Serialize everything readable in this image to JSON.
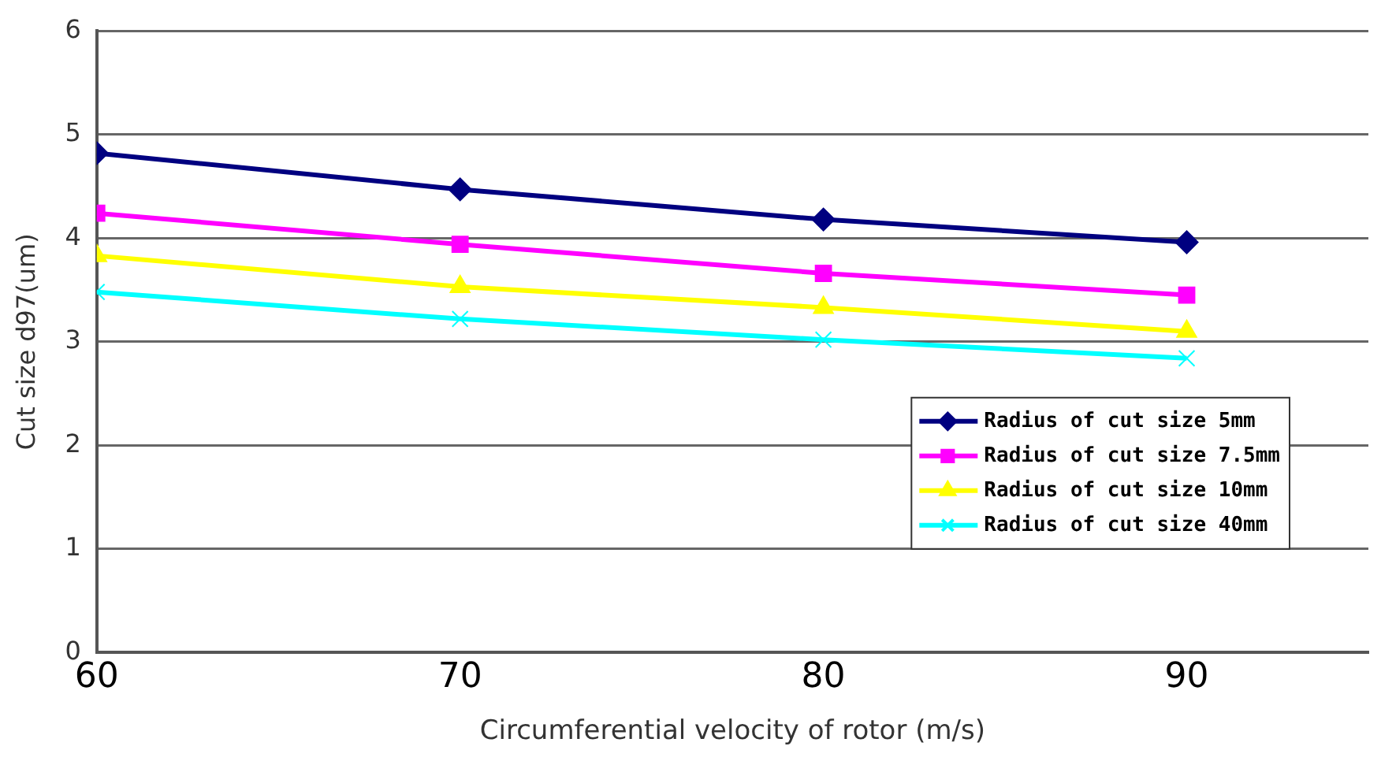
{
  "chart_data": {
    "type": "line",
    "xlabel": "Circumferential velocity of rotor (m/s)",
    "ylabel": "Cut size d97(um)",
    "x": [
      60,
      70,
      80,
      90
    ],
    "xlim": [
      60,
      95
    ],
    "xticks": [
      60,
      70,
      80,
      90
    ],
    "ylim": [
      0,
      6
    ],
    "yticks": [
      0,
      1,
      2,
      3,
      4,
      5,
      6
    ],
    "grid": "y",
    "legend": "right",
    "line_style": "solid",
    "series": [
      {
        "name": "Radius of cut size 5mm",
        "color": "#000080",
        "marker": "diamond",
        "values": [
          4.82,
          4.47,
          4.18,
          3.96
        ]
      },
      {
        "name": "Radius of cut size 7.5mm",
        "color": "#ff00ff",
        "marker": "square",
        "values": [
          4.24,
          3.94,
          3.66,
          3.45
        ]
      },
      {
        "name": "Radius of cut size 10mm",
        "color": "#ffff00",
        "marker": "triangle",
        "values": [
          3.83,
          3.53,
          3.33,
          3.1
        ]
      },
      {
        "name": "Radius of cut size 40mm",
        "color": "#00ffff",
        "marker": "cross",
        "values": [
          3.48,
          3.22,
          3.02,
          2.84
        ]
      }
    ]
  }
}
